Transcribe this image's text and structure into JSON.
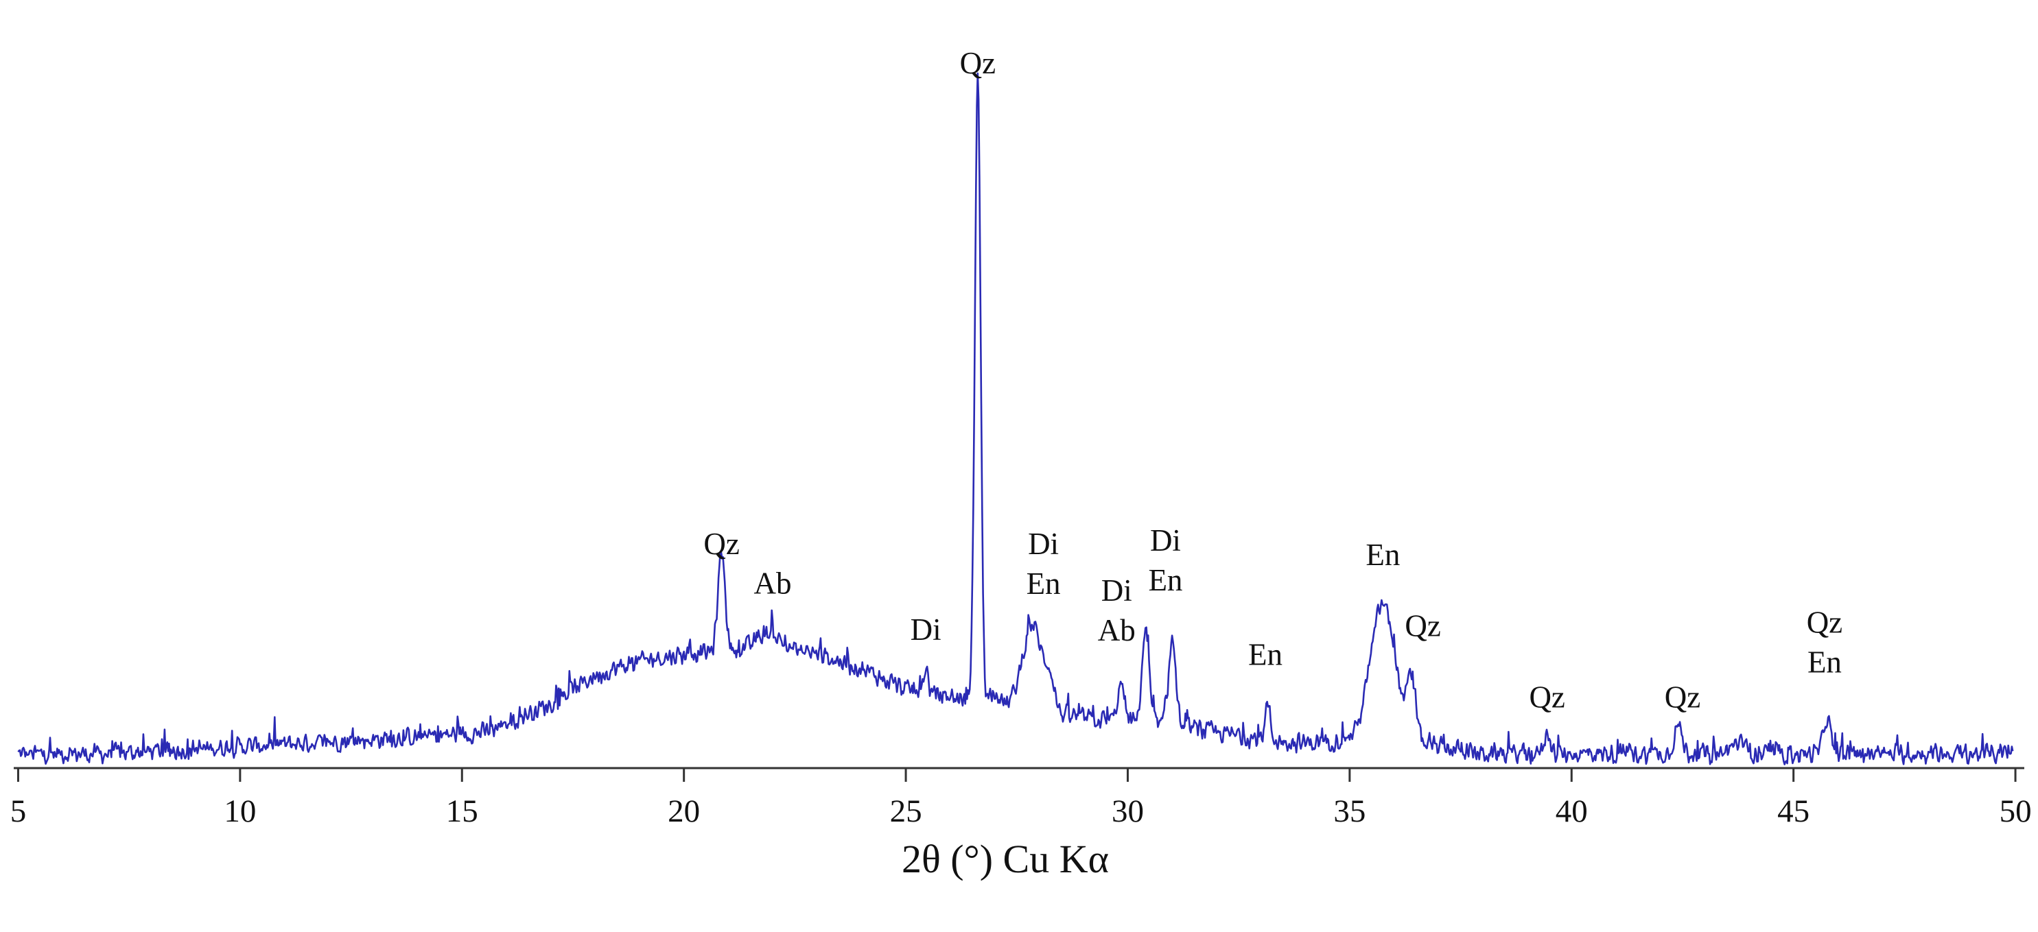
{
  "chart_data": {
    "type": "line",
    "title": "",
    "xlabel": "2θ (°) Cu Kα",
    "ylabel": "",
    "xlim": [
      4.9,
      50.2
    ],
    "ylim": [
      0,
      1.02
    ],
    "grid": false,
    "legend": "none",
    "line_color": "#2a2ab4",
    "x_ticks": [
      5,
      10,
      15,
      20,
      25,
      30,
      35,
      40,
      45,
      50
    ],
    "x_tick_labels": [
      "5",
      "10",
      "15",
      "20",
      "25",
      "30",
      "35",
      "40",
      "45",
      "50"
    ],
    "series": [
      {
        "background": [
          [
            5,
            0.02
          ],
          [
            7,
            0.02
          ],
          [
            10,
            0.03
          ],
          [
            13,
            0.04
          ],
          [
            15.5,
            0.05
          ],
          [
            17,
            0.09
          ],
          [
            18,
            0.13
          ],
          [
            19,
            0.15
          ],
          [
            20,
            0.16
          ],
          [
            21,
            0.165
          ],
          [
            22,
            0.17
          ],
          [
            23,
            0.16
          ],
          [
            24,
            0.14
          ],
          [
            25,
            0.11
          ],
          [
            26,
            0.1
          ],
          [
            27,
            0.09
          ],
          [
            28,
            0.08
          ],
          [
            29,
            0.07
          ],
          [
            30,
            0.065
          ],
          [
            31,
            0.06
          ],
          [
            32,
            0.05
          ],
          [
            33,
            0.04
          ],
          [
            34,
            0.035
          ],
          [
            35,
            0.04
          ],
          [
            36,
            0.04
          ],
          [
            37,
            0.03
          ],
          [
            38,
            0.02
          ],
          [
            40,
            0.02
          ],
          [
            45,
            0.02
          ],
          [
            50,
            0.02
          ]
        ],
        "peaks": [
          {
            "x": 20.85,
            "h": 0.14,
            "w": 0.08
          },
          {
            "x": 21.9,
            "h": 0.02,
            "w": 0.25
          },
          {
            "x": 25.45,
            "h": 0.035,
            "w": 0.05
          },
          {
            "x": 26.62,
            "h": 0.88,
            "w": 0.065
          },
          {
            "x": 27.0,
            "h": 0.02,
            "w": 0.1
          },
          {
            "x": 27.85,
            "h": 0.12,
            "w": 0.22
          },
          {
            "x": 28.25,
            "h": 0.04,
            "w": 0.1
          },
          {
            "x": 29.85,
            "h": 0.05,
            "w": 0.08
          },
          {
            "x": 30.4,
            "h": 0.13,
            "w": 0.08
          },
          {
            "x": 31.0,
            "h": 0.12,
            "w": 0.08
          },
          {
            "x": 33.15,
            "h": 0.05,
            "w": 0.06
          },
          {
            "x": 35.75,
            "h": 0.19,
            "w": 0.28
          },
          {
            "x": 36.4,
            "h": 0.08,
            "w": 0.1
          },
          {
            "x": 39.45,
            "h": 0.03,
            "w": 0.07
          },
          {
            "x": 42.4,
            "h": 0.04,
            "w": 0.09
          },
          {
            "x": 43.75,
            "h": 0.015,
            "w": 0.15
          },
          {
            "x": 45.75,
            "h": 0.05,
            "w": 0.08
          }
        ],
        "noise_amplitude": 0.016,
        "sample_step": 0.02
      }
    ],
    "annotations": [
      {
        "lines": [
          "Qz"
        ],
        "x": 26.62,
        "y": 0.975
      },
      {
        "lines": [
          "Qz"
        ],
        "x": 20.85,
        "y": 0.3
      },
      {
        "lines": [
          "Ab"
        ],
        "x": 22.0,
        "y": 0.245
      },
      {
        "lines": [
          "Di"
        ],
        "x": 25.45,
        "y": 0.18
      },
      {
        "lines": [
          "Di",
          "En"
        ],
        "x": 28.1,
        "y": 0.3
      },
      {
        "lines": [
          "Di",
          "Ab"
        ],
        "x": 29.75,
        "y": 0.235
      },
      {
        "lines": [
          "Di",
          "En"
        ],
        "x": 30.85,
        "y": 0.305
      },
      {
        "lines": [
          "En"
        ],
        "x": 33.1,
        "y": 0.145
      },
      {
        "lines": [
          "En"
        ],
        "x": 35.75,
        "y": 0.285
      },
      {
        "lines": [
          "Qz"
        ],
        "x": 36.65,
        "y": 0.185
      },
      {
        "lines": [
          "Qz"
        ],
        "x": 39.45,
        "y": 0.085
      },
      {
        "lines": [
          "Qz"
        ],
        "x": 42.5,
        "y": 0.085
      },
      {
        "lines": [
          "Qz",
          "En"
        ],
        "x": 45.7,
        "y": 0.19
      }
    ]
  }
}
